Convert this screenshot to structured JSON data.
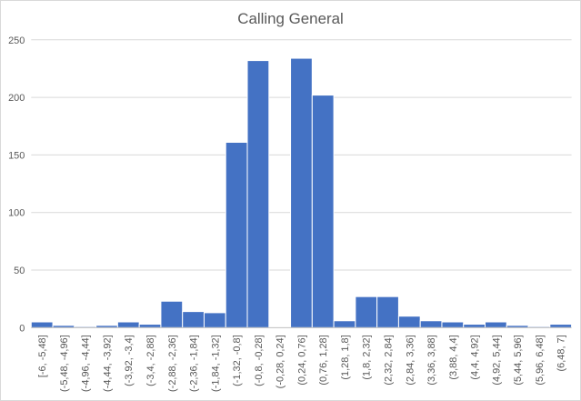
{
  "chart_data": {
    "type": "bar",
    "title": "Calling General",
    "xlabel": "",
    "ylabel": "",
    "ylim": [
      0,
      250
    ],
    "yticks": [
      0,
      50,
      100,
      150,
      200,
      250
    ],
    "grid": true,
    "legend": "none",
    "bar_color": "#4472c4",
    "categories": [
      "[-6, -5,48]",
      "(-5,48, -4,96]",
      "(-4,96, -4,44]",
      "(-4,44, -3,92]",
      "(-3,92, -3,4]",
      "(-3,4, -2,88]",
      "(-2,88, -2,36]",
      "(-2,36, -1,84]",
      "(-1,84, -1,32]",
      "(-1,32, -0,8]",
      "(-0,8, -0,28]",
      "(-0,28, 0,24]",
      "(0,24, 0,76]",
      "(0,76, 1,28]",
      "(1,28, 1,8]",
      "(1,8, 2,32]",
      "(2,32, 2,84]",
      "(2,84, 3,36]",
      "(3,36, 3,88]",
      "(3,88, 4,4]",
      "(4,4, 4,92]",
      "(4,92, 5,44]",
      "(5,44, 5,96]",
      "(5,96, 6,48]",
      "(6,48, 7]"
    ],
    "values": [
      5,
      2,
      1,
      2,
      5,
      3,
      23,
      14,
      13,
      161,
      232,
      0,
      234,
      202,
      6,
      27,
      27,
      10,
      6,
      5,
      3,
      5,
      2,
      1,
      3
    ]
  }
}
